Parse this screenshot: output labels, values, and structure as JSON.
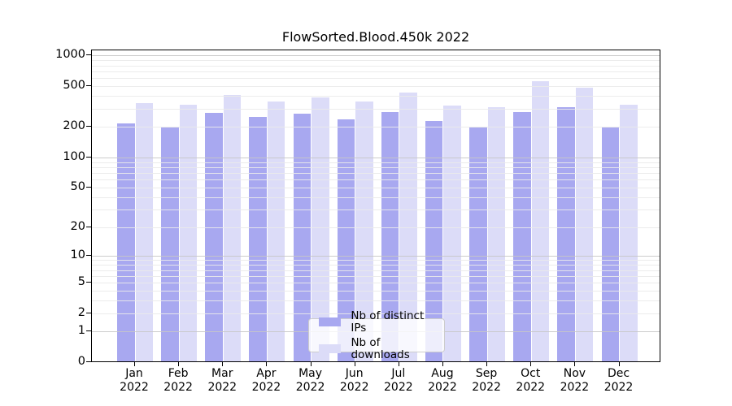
{
  "title": "FlowSorted.Blood.450k 2022",
  "chart_data": {
    "type": "bar",
    "title": "FlowSorted.Blood.450k 2022",
    "categories": [
      "Jan 2022",
      "Feb 2022",
      "Mar 2022",
      "Apr 2022",
      "May 2022",
      "Jun 2022",
      "Jul 2022",
      "Aug 2022",
      "Sep 2022",
      "Oct 2022",
      "Nov 2022",
      "Dec 2022"
    ],
    "series": [
      {
        "name": "Nb of distinct IPs",
        "color": "#a8a8f0",
        "values": [
          215,
          198,
          272,
          250,
          268,
          235,
          280,
          227,
          196,
          277,
          310,
          199
        ]
      },
      {
        "name": "Nb of downloads",
        "color": "#dcdcf8",
        "values": [
          345,
          327,
          408,
          357,
          389,
          358,
          434,
          326,
          310,
          560,
          482,
          330
        ]
      }
    ],
    "xlabel": "",
    "ylabel": "",
    "yscale": "pseudo-log: y = log10(value+1)",
    "ytick_labels": [
      "0",
      "1",
      "2",
      "5",
      "10",
      "20",
      "50",
      "100",
      "200",
      "500",
      "1000"
    ],
    "yticks": [
      0,
      1,
      2,
      5,
      10,
      20,
      50,
      100,
      200,
      500,
      1000
    ],
    "major_grid_at": [
      1,
      10,
      100,
      1000
    ],
    "ylim": [
      0,
      1120
    ],
    "grid": true,
    "legend_position": "inside-bottom-center"
  },
  "legend": {
    "items": [
      {
        "label": "Nb of distinct IPs",
        "color": "#a8a8f0"
      },
      {
        "label": "Nb of downloads",
        "color": "#dcdcf8"
      }
    ]
  },
  "colors": {
    "background": "#ffffff",
    "bar_distinct_ips": "#a8a8f0",
    "bar_downloads": "#dcdcf8",
    "major_grid": "#c6c6c6",
    "minor_grid": "#eaeaea",
    "spine": "#000000",
    "text": "#000000",
    "legend_border": "#cccccc"
  }
}
